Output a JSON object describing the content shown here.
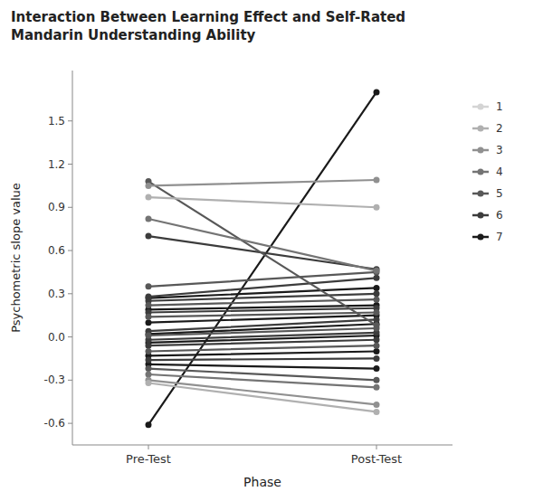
{
  "chart_data": {
    "type": "slope",
    "title": "Interaction Between Learning Effect and Self-Rated\nMandarin Understanding Ability",
    "x_label": "Phase",
    "y_label": "Psychometric slope value",
    "categories": [
      "Pre-Test",
      "Post-Test"
    ],
    "ylim": [
      -0.75,
      1.85
    ],
    "yticks": [
      -0.6,
      -0.3,
      {
        "value": 0.0,
        "label": "0.0"
      },
      0.3,
      0.6,
      0.9,
      1.2,
      1.5
    ],
    "grid": false,
    "legend": "right",
    "marker": "circle",
    "legend_items": [
      {
        "name": "1",
        "color": "#d4d4d4"
      },
      {
        "name": "2",
        "color": "#b0b0b0"
      },
      {
        "name": "3",
        "color": "#909090"
      },
      {
        "name": "4",
        "color": "#747474"
      },
      {
        "name": "5",
        "color": "#585858"
      },
      {
        "name": "6",
        "color": "#3c3c3c"
      },
      {
        "name": "7",
        "color": "#1a1a1a"
      }
    ],
    "series": [
      {
        "group": "7",
        "color": "#1a1a1a",
        "values": [
          -0.61,
          1.7
        ]
      },
      {
        "group": "3",
        "color": "#909090",
        "values": [
          1.05,
          1.09
        ]
      },
      {
        "group": "5",
        "color": "#585858",
        "values": [
          1.08,
          0.08
        ]
      },
      {
        "group": "2",
        "color": "#b0b0b0",
        "values": [
          0.97,
          0.9
        ]
      },
      {
        "group": "4",
        "color": "#747474",
        "values": [
          0.82,
          0.46
        ]
      },
      {
        "group": "6",
        "color": "#3c3c3c",
        "values": [
          0.7,
          0.47
        ]
      },
      {
        "group": "5",
        "color": "#585858",
        "values": [
          0.35,
          0.45
        ]
      },
      {
        "group": "6",
        "color": "#3c3c3c",
        "values": [
          0.28,
          0.41
        ]
      },
      {
        "group": "7",
        "color": "#1a1a1a",
        "values": [
          0.27,
          0.34
        ]
      },
      {
        "group": "6",
        "color": "#3c3c3c",
        "values": [
          0.25,
          0.3
        ]
      },
      {
        "group": "5",
        "color": "#585858",
        "values": [
          0.22,
          0.26
        ]
      },
      {
        "group": "7",
        "color": "#1a1a1a",
        "values": [
          0.19,
          0.22
        ]
      },
      {
        "group": "6",
        "color": "#3c3c3c",
        "values": [
          0.17,
          0.2
        ]
      },
      {
        "group": "5",
        "color": "#585858",
        "values": [
          0.14,
          0.17
        ]
      },
      {
        "group": "7",
        "color": "#1a1a1a",
        "values": [
          0.1,
          0.15
        ]
      },
      {
        "group": "6",
        "color": "#3c3c3c",
        "values": [
          0.04,
          0.12
        ]
      },
      {
        "group": "7",
        "color": "#1a1a1a",
        "values": [
          0.02,
          0.09
        ]
      },
      {
        "group": "5",
        "color": "#585858",
        "values": [
          0.01,
          0.06
        ]
      },
      {
        "group": "6",
        "color": "#3c3c3c",
        "values": [
          -0.02,
          0.03
        ]
      },
      {
        "group": "7",
        "color": "#1a1a1a",
        "values": [
          -0.04,
          0.01
        ]
      },
      {
        "group": "6",
        "color": "#3c3c3c",
        "values": [
          -0.06,
          -0.02
        ]
      },
      {
        "group": "5",
        "color": "#585858",
        "values": [
          -0.1,
          -0.06
        ]
      },
      {
        "group": "7",
        "color": "#1a1a1a",
        "values": [
          -0.13,
          -0.1
        ]
      },
      {
        "group": "6",
        "color": "#3c3c3c",
        "values": [
          -0.16,
          -0.15
        ]
      },
      {
        "group": "7",
        "color": "#1a1a1a",
        "values": [
          -0.19,
          -0.22
        ]
      },
      {
        "group": "5",
        "color": "#585858",
        "values": [
          -0.22,
          -0.3
        ]
      },
      {
        "group": "4",
        "color": "#747474",
        "values": [
          -0.26,
          -0.35
        ]
      },
      {
        "group": "3",
        "color": "#909090",
        "values": [
          -0.3,
          -0.47
        ]
      },
      {
        "group": "2",
        "color": "#b0b0b0",
        "values": [
          -0.32,
          -0.52
        ]
      }
    ]
  }
}
